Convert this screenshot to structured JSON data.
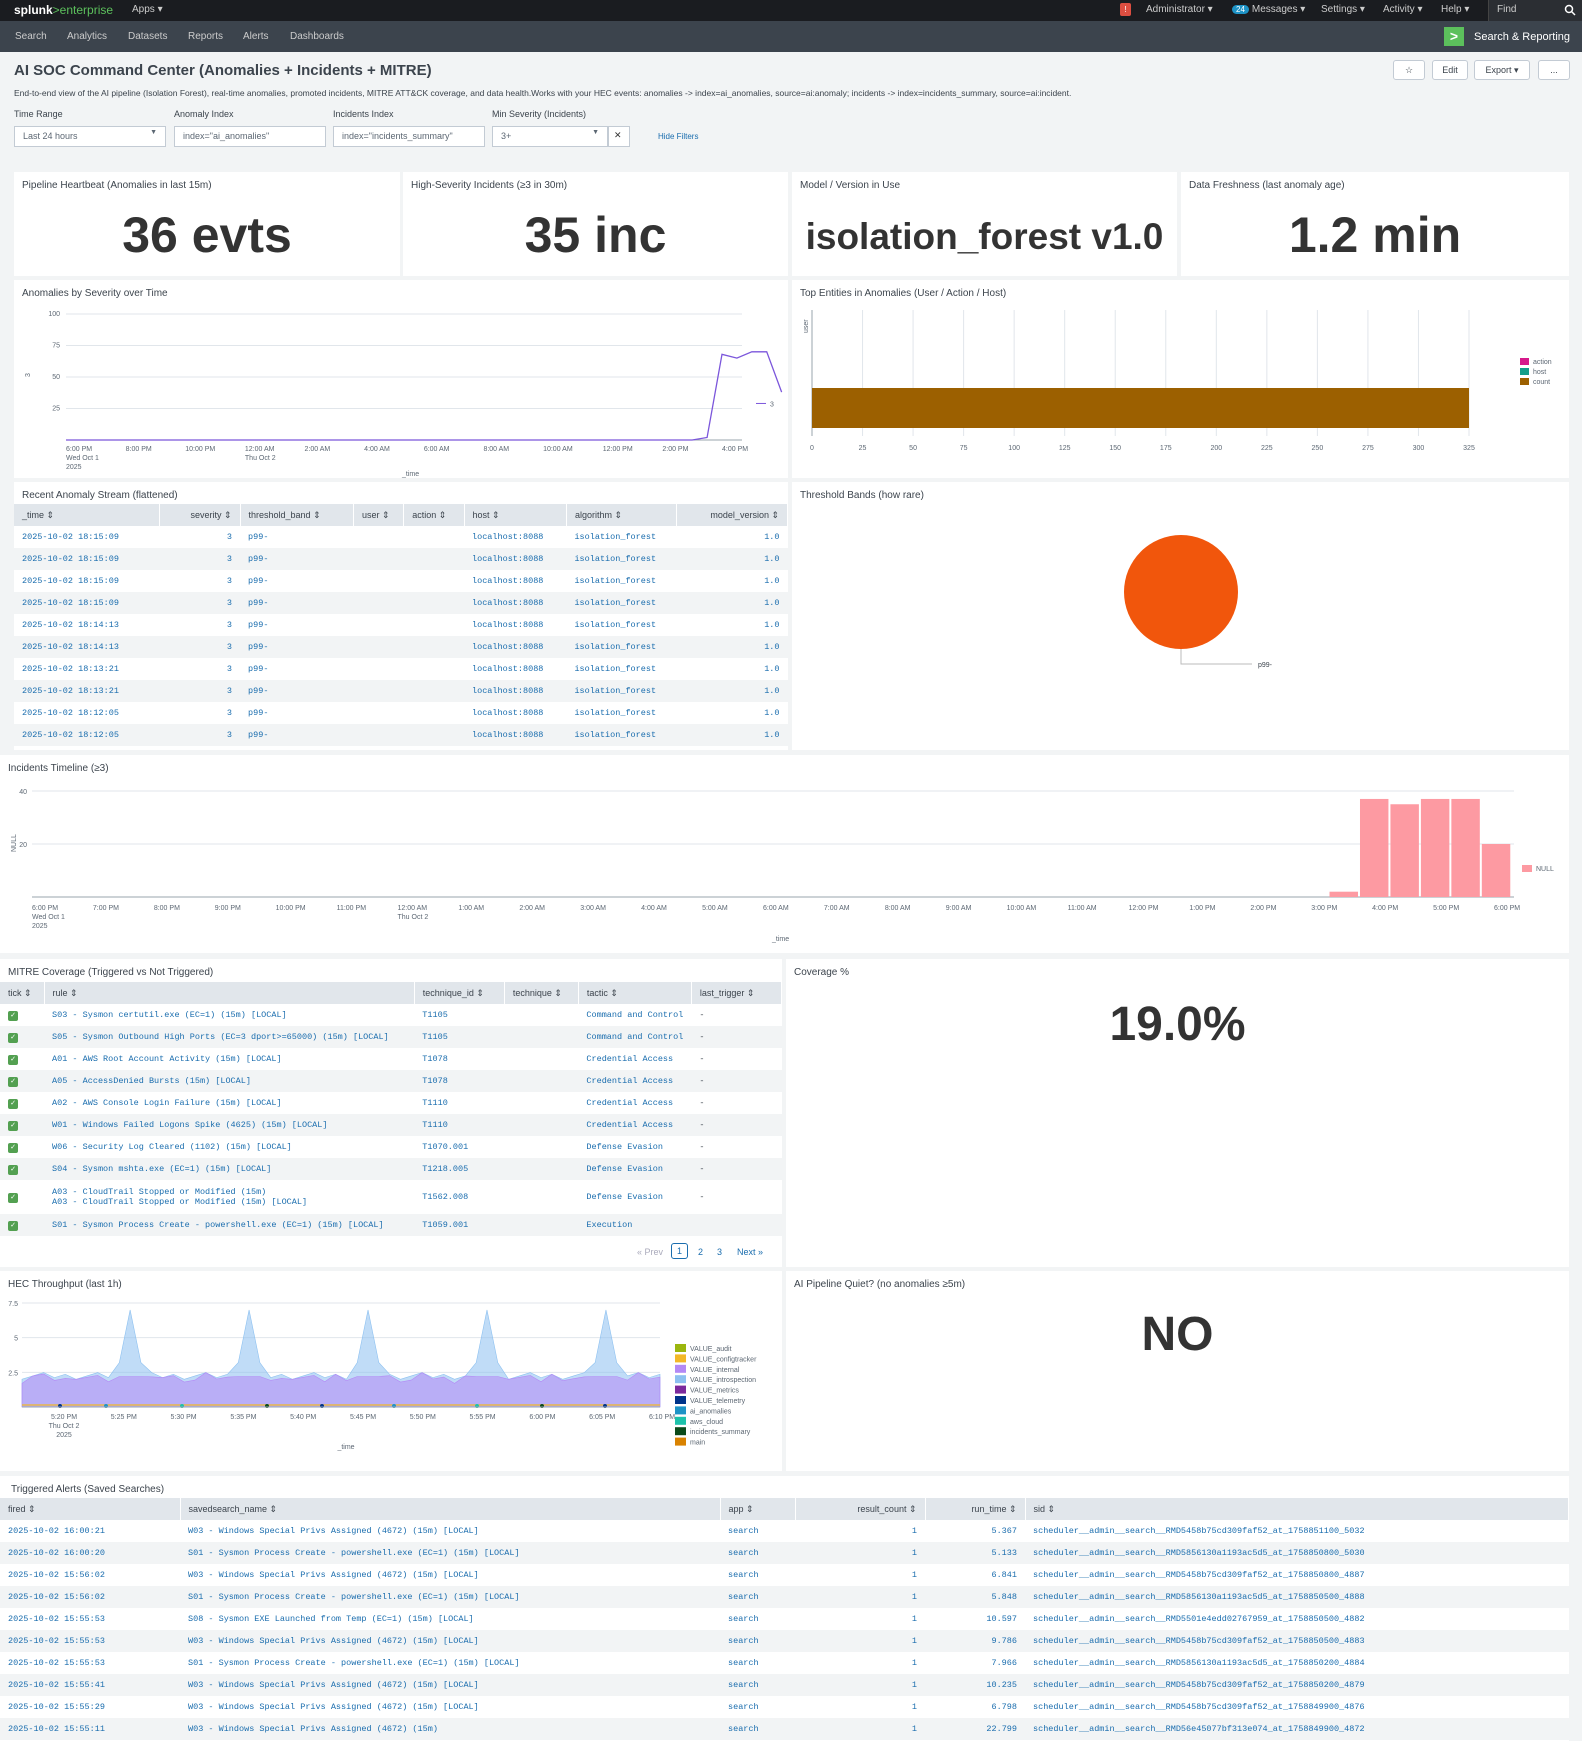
{
  "topbar": {
    "brand": "splunk",
    "brand2": ">enterprise",
    "apps": "Apps ▾",
    "alert_count": "!",
    "user": "Administrator ▾",
    "msg_count": "24",
    "messages": "Messages ▾",
    "settings": "Settings ▾",
    "activity": "Activity ▾",
    "help": "Help ▾",
    "find": "Find"
  },
  "appbar": {
    "nav": [
      "Search",
      "Analytics",
      "Datasets",
      "Reports",
      "Alerts",
      "Dashboards"
    ],
    "app_title": "Search & Reporting"
  },
  "header": {
    "title": "AI SOC Command Center (Anomalies + Incidents + MITRE)",
    "description": "End-to-end view of the AI pipeline (Isolation Forest), real-time anomalies, promoted incidents, MITRE ATT&CK coverage, and data health.Works with your HEC events: anomalies -> index=ai_anomalies, source=ai:anomaly; incidents -> index=incidents_summary, source=ai:incident.",
    "star": "☆",
    "edit": "Edit",
    "export": "Export ▾",
    "more": "..."
  },
  "filters": {
    "time_label": "Time Range",
    "time_value": "Last 24 hours",
    "anom_label": "Anomaly Index",
    "anom_value": "index=\"ai_anomalies\"",
    "inc_label": "Incidents Index",
    "inc_value": "index=\"incidents_summary\"",
    "sev_label": "Min Severity (Incidents)",
    "sev_value": "3+",
    "hide": "Hide Filters"
  },
  "singles": [
    {
      "title": "Pipeline Heartbeat (Anomalies in last 15m)",
      "value": "36 evts"
    },
    {
      "title": "High-Severity Incidents (≥3 in 30m)",
      "value": "35 inc"
    },
    {
      "title": "Model / Version in Use",
      "value": "isolation_forest v1.0"
    },
    {
      "title": "Data Freshness (last anomaly age)",
      "value": "1.2 min"
    }
  ],
  "anomalies_chart": {
    "title": "Anomalies by Severity over Time",
    "xlabel": "_time",
    "ylabel": "3",
    "series_label": "3",
    "x_ticks": [
      "6:00 PM",
      "8:00 PM",
      "10:00 PM",
      "12:00 AM",
      "2:00 AM",
      "4:00 AM",
      "6:00 AM",
      "8:00 AM",
      "10:00 AM",
      "12:00 PM",
      "2:00 PM",
      "4:00 PM"
    ],
    "x_sub1": "Wed Oct 1",
    "x_sub2": "2025",
    "x_sub3": "Thu Oct 2",
    "y_ticks": [
      "100",
      "75",
      "50",
      "25"
    ]
  },
  "chart_data": [
    {
      "type": "line",
      "title": "Anomalies by Severity over Time",
      "xlabel": "_time",
      "ylabel": "3",
      "ylim": [
        0,
        100
      ],
      "series": [
        {
          "name": "3",
          "x": [
            "6:00 PM",
            "8:00 PM",
            "10:00 PM",
            "12:00 AM",
            "2:00 AM",
            "4:00 AM",
            "6:00 AM",
            "8:00 AM",
            "10:00 AM",
            "12:00 PM",
            "2:00 PM",
            "3:00 PM",
            "3:30 PM",
            "4:00 PM",
            "4:30 PM",
            "5:00 PM",
            "5:30 PM",
            "6:00 PM"
          ],
          "values": [
            0,
            0,
            0,
            0,
            0,
            0,
            0,
            0,
            0,
            0,
            0,
            0,
            2,
            68,
            65,
            70,
            70,
            38
          ]
        }
      ]
    },
    {
      "type": "bar",
      "title": "Top Entities in Anomalies (User / Action / Host)",
      "categories": [
        ""
      ],
      "series": [
        {
          "name": "count",
          "values": [
            328
          ]
        }
      ],
      "legend": [
        "action",
        "host",
        "count"
      ],
      "xlim": [
        0,
        325
      ],
      "ylabel": "user"
    },
    {
      "type": "pie",
      "title": "Threshold Bands (how rare)",
      "categories": [
        "p99-"
      ],
      "values": [
        100
      ]
    },
    {
      "type": "bar",
      "title": "Incidents Timeline (≥3)",
      "xlabel": "_time",
      "ylabel": "NULL",
      "ylim": [
        0,
        40
      ],
      "categories": [
        "3:30 PM",
        "4:00 PM",
        "4:30 PM",
        "5:00 PM",
        "5:30 PM",
        "6:00 PM"
      ],
      "series": [
        {
          "name": "NULL",
          "values": [
            2,
            37,
            35,
            37,
            37,
            20
          ]
        }
      ]
    },
    {
      "type": "area",
      "title": "HEC Throughput (last 1h)",
      "xlabel": "_time",
      "ylim": [
        0,
        7.5
      ],
      "series": [
        {
          "name": "VALUE_audit"
        },
        {
          "name": "VALUE_configtracker"
        },
        {
          "name": "VALUE_internal"
        },
        {
          "name": "VALUE_introspection"
        },
        {
          "name": "VALUE_metrics"
        },
        {
          "name": "VALUE_telemetry"
        },
        {
          "name": "ai_anomalies"
        },
        {
          "name": "aws_cloud"
        },
        {
          "name": "incidents_summary"
        },
        {
          "name": "main"
        }
      ]
    }
  ],
  "entities_chart": {
    "title": "Top Entities in Anomalies (User / Action / Host)",
    "ylabel": "user",
    "x_ticks": [
      "0",
      "25",
      "50",
      "75",
      "100",
      "125",
      "150",
      "175",
      "200",
      "225",
      "250",
      "275",
      "300",
      "325"
    ],
    "legend": [
      "action",
      "host",
      "count"
    ],
    "colors": [
      "#d6198b",
      "#139e8a",
      "#9c6000"
    ]
  },
  "stream": {
    "title": "Recent Anomaly Stream (flattened)",
    "columns": [
      "_time ⇕",
      "severity ⇕",
      "threshold_band ⇕",
      "user ⇕",
      "action ⇕",
      "host ⇕",
      "algorithm ⇕",
      "model_version ⇕"
    ],
    "rows": [
      [
        "2025-10-02 18:15:09",
        "3",
        "p99-",
        "",
        "",
        "localhost:8088",
        "isolation_forest",
        "1.0"
      ],
      [
        "2025-10-02 18:15:09",
        "3",
        "p99-",
        "",
        "",
        "localhost:8088",
        "isolation_forest",
        "1.0"
      ],
      [
        "2025-10-02 18:15:09",
        "3",
        "p99-",
        "",
        "",
        "localhost:8088",
        "isolation_forest",
        "1.0"
      ],
      [
        "2025-10-02 18:15:09",
        "3",
        "p99-",
        "",
        "",
        "localhost:8088",
        "isolation_forest",
        "1.0"
      ],
      [
        "2025-10-02 18:14:13",
        "3",
        "p99-",
        "",
        "",
        "localhost:8088",
        "isolation_forest",
        "1.0"
      ],
      [
        "2025-10-02 18:14:13",
        "3",
        "p99-",
        "",
        "",
        "localhost:8088",
        "isolation_forest",
        "1.0"
      ],
      [
        "2025-10-02 18:13:21",
        "3",
        "p99-",
        "",
        "",
        "localhost:8088",
        "isolation_forest",
        "1.0"
      ],
      [
        "2025-10-02 18:13:21",
        "3",
        "p99-",
        "",
        "",
        "localhost:8088",
        "isolation_forest",
        "1.0"
      ],
      [
        "2025-10-02 18:12:05",
        "3",
        "p99-",
        "",
        "",
        "localhost:8088",
        "isolation_forest",
        "1.0"
      ],
      [
        "2025-10-02 18:12:05",
        "3",
        "p99-",
        "",
        "",
        "localhost:8088",
        "isolation_forest",
        "1.0"
      ]
    ]
  },
  "threshold": {
    "title": "Threshold Bands (how rare)",
    "label": "p99-",
    "color": "#f1560c"
  },
  "incidents_chart": {
    "title": "Incidents Timeline (≥3)",
    "xlabel": "_time",
    "ylabel": "NULL",
    "legend": "NULL",
    "y_ticks": [
      "40",
      "20"
    ],
    "x_ticks": [
      "6:00 PM",
      "7:00 PM",
      "8:00 PM",
      "9:00 PM",
      "10:00 PM",
      "11:00 PM",
      "12:00 AM",
      "1:00 AM",
      "2:00 AM",
      "3:00 AM",
      "4:00 AM",
      "5:00 AM",
      "6:00 AM",
      "7:00 AM",
      "8:00 AM",
      "9:00 AM",
      "10:00 AM",
      "11:00 AM",
      "12:00 PM",
      "1:00 PM",
      "2:00 PM",
      "3:00 PM",
      "4:00 PM",
      "5:00 PM",
      "6:00 PM"
    ],
    "x_sub1": "Wed Oct 1",
    "x_sub2": "2025",
    "x_sub3": "Thu Oct 2",
    "color": "#fd9aa2"
  },
  "mitre": {
    "title": "MITRE Coverage (Triggered vs Not Triggered)",
    "columns": [
      "tick ⇕",
      "rule ⇕",
      "technique_id ⇕",
      "technique ⇕",
      "tactic ⇕",
      "last_trigger ⇕"
    ],
    "rows": [
      [
        "✓",
        "S03 - Sysmon certutil.exe (EC=1) (15m) [LOCAL]",
        "T1105",
        "",
        "Command and Control",
        "-"
      ],
      [
        "✓",
        "S05 - Sysmon Outbound High Ports (EC=3 dport>=65000) (15m) [LOCAL]",
        "T1105",
        "",
        "Command and Control",
        "-"
      ],
      [
        "✓",
        "A01 - AWS Root Account Activity (15m) [LOCAL]",
        "T1078",
        "",
        "Credential Access",
        "-"
      ],
      [
        "✓",
        "A05 - AccessDenied Bursts (15m) [LOCAL]",
        "T1078",
        "",
        "Credential Access",
        "-"
      ],
      [
        "✓",
        "A02 - AWS Console Login Failure (15m) [LOCAL]",
        "T1110",
        "",
        "Credential Access",
        "-"
      ],
      [
        "✓",
        "W01 - Windows Failed Logons Spike (4625) (15m) [LOCAL]",
        "T1110",
        "",
        "Credential Access",
        "-"
      ],
      [
        "✓",
        "W06 - Security Log Cleared (1102) (15m) [LOCAL]",
        "T1070.001",
        "",
        "Defense Evasion",
        "-"
      ],
      [
        "✓",
        "S04 - Sysmon mshta.exe (EC=1) (15m) [LOCAL]",
        "T1218.005",
        "",
        "Defense Evasion",
        "-"
      ],
      [
        "✓",
        "A03 - CloudTrail Stopped or Modified (15m)",
        "T1562.008",
        "",
        "Defense Evasion",
        "-"
      ],
      [
        "✓",
        "S01 - Sysmon Process Create - powershell.exe (EC=1) (15m) [LOCAL]",
        "T1059.001",
        "",
        "Execution",
        ""
      ]
    ],
    "row9_line2": "A03 - CloudTrail Stopped or Modified (15m) [LOCAL]",
    "prev": "« Prev",
    "pages": [
      "1",
      "2",
      "3"
    ],
    "next": "Next »"
  },
  "coverage": {
    "title": "Coverage %",
    "value": "19.0%"
  },
  "hec": {
    "title": "HEC Throughput (last 1h)",
    "xlabel": "_time",
    "y_ticks": [
      "7.5",
      "5",
      "2.5"
    ],
    "x_ticks": [
      "5:20 PM",
      "5:25 PM",
      "5:30 PM",
      "5:35 PM",
      "5:40 PM",
      "5:45 PM",
      "5:50 PM",
      "5:55 PM",
      "6:00 PM",
      "6:05 PM",
      "6:10 PM"
    ],
    "x_sub1": "Thu Oct 2",
    "x_sub2": "2025",
    "legend": [
      {
        "name": "VALUE_audit",
        "color": "#9bb60e"
      },
      {
        "name": "VALUE_configtracker",
        "color": "#f2b827"
      },
      {
        "name": "VALUE_internal",
        "color": "#b389f5"
      },
      {
        "name": "VALUE_introspection",
        "color": "#8cc0f0"
      },
      {
        "name": "VALUE_metrics",
        "color": "#7b2a9c"
      },
      {
        "name": "VALUE_telemetry",
        "color": "#00348a"
      },
      {
        "name": "ai_anomalies",
        "color": "#1e93c6"
      },
      {
        "name": "aws_cloud",
        "color": "#1dc2ab"
      },
      {
        "name": "incidents_summary",
        "color": "#0b4a1a"
      },
      {
        "name": "main",
        "color": "#d98200"
      }
    ]
  },
  "quiet": {
    "title": "AI Pipeline Quiet? (no anomalies ≥5m)",
    "value": "NO"
  },
  "alerts": {
    "title": "Triggered Alerts (Saved Searches)",
    "columns": [
      "fired ⇕",
      "savedsearch_name ⇕",
      "app ⇕",
      "result_count ⇕",
      "run_time ⇕",
      "sid ⇕"
    ],
    "rows": [
      [
        "2025-10-02 16:00:21",
        "W03 - Windows Special Privs Assigned (4672) (15m) [LOCAL]",
        "search",
        "1",
        "5.367",
        "scheduler__admin__search__RMD5458b75cd309faf52_at_1758851100_5032"
      ],
      [
        "2025-10-02 16:00:20",
        "S01 - Sysmon Process Create - powershell.exe (EC=1) (15m) [LOCAL]",
        "search",
        "1",
        "5.133",
        "scheduler__admin__search__RMD5856130a1193ac5d5_at_1758850800_5030"
      ],
      [
        "2025-10-02 15:56:02",
        "W03 - Windows Special Privs Assigned (4672) (15m) [LOCAL]",
        "search",
        "1",
        "6.841",
        "scheduler__admin__search__RMD5458b75cd309faf52_at_1758850800_4887"
      ],
      [
        "2025-10-02 15:56:02",
        "S01 - Sysmon Process Create - powershell.exe (EC=1) (15m) [LOCAL]",
        "search",
        "1",
        "5.848",
        "scheduler__admin__search__RMD5856130a1193ac5d5_at_1758850500_4888"
      ],
      [
        "2025-10-02 15:55:53",
        "S08 - Sysmon EXE Launched from Temp (EC=1) (15m) [LOCAL]",
        "search",
        "1",
        "10.597",
        "scheduler__admin__search__RMD5501e4edd02767959_at_1758850500_4882"
      ],
      [
        "2025-10-02 15:55:53",
        "W03 - Windows Special Privs Assigned (4672) (15m) [LOCAL]",
        "search",
        "1",
        "9.786",
        "scheduler__admin__search__RMD5458b75cd309faf52_at_1758850500_4883"
      ],
      [
        "2025-10-02 15:55:53",
        "S01 - Sysmon Process Create - powershell.exe (EC=1) (15m) [LOCAL]",
        "search",
        "1",
        "7.966",
        "scheduler__admin__search__RMD5856130a1193ac5d5_at_1758850200_4884"
      ],
      [
        "2025-10-02 15:55:41",
        "W03 - Windows Special Privs Assigned (4672) (15m) [LOCAL]",
        "search",
        "1",
        "10.235",
        "scheduler__admin__search__RMD5458b75cd309faf52_at_1758850200_4879"
      ],
      [
        "2025-10-02 15:55:29",
        "W03 - Windows Special Privs Assigned (4672) (15m) [LOCAL]",
        "search",
        "1",
        "6.798",
        "scheduler__admin__search__RMD5458b75cd309faf52_at_1758849900_4876"
      ],
      [
        "2025-10-02 15:55:11",
        "W03 - Windows Special Privs Assigned (4672) (15m)",
        "search",
        "1",
        "22.799",
        "scheduler__admin__search__RMD56e45077bf313e074_at_1758849900_4872"
      ]
    ]
  }
}
